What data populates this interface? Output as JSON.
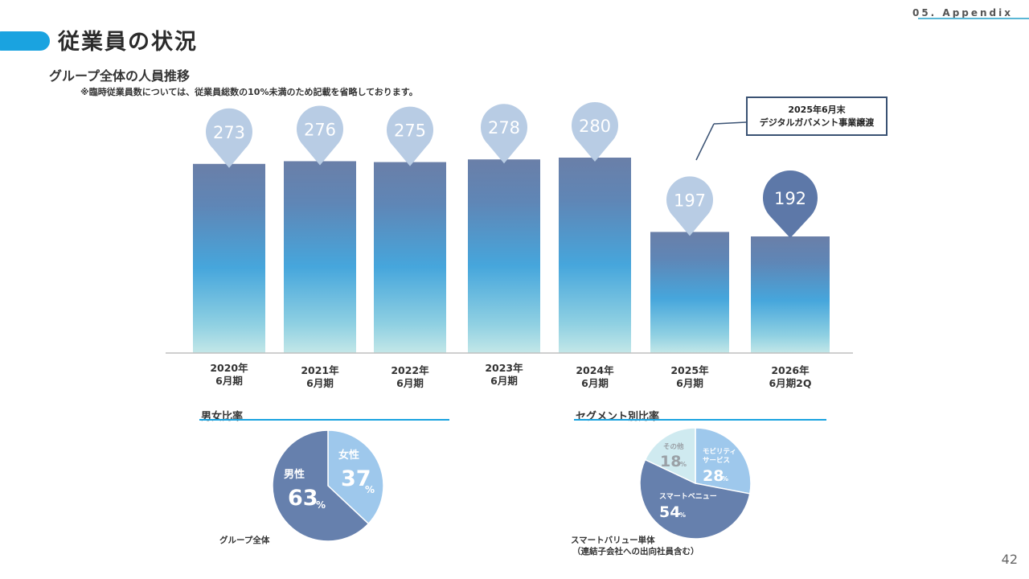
{
  "header": {
    "section": "05. Appendix",
    "title": "従業員の状況",
    "subtitle": "グループ全体の人員推移",
    "note": "※臨時従業員数については、従業員総数の10%未満のため記載を省略しております。",
    "page_number": "42"
  },
  "callout": {
    "line1": "2025年6月末",
    "line2": "デジタルガバメント事業譲渡"
  },
  "chart_data": [
    {
      "type": "bar",
      "categories": [
        "2020年\n6月期",
        "2021年\n6月期",
        "2022年\n6月期",
        "2023年\n6月期",
        "2024年\n6月期",
        "2025年\n6月期",
        "2026年\n6月期2Q"
      ],
      "values": [
        273,
        276,
        275,
        278,
        280,
        197,
        192
      ],
      "title": "",
      "xlabel": "",
      "ylabel": "",
      "grid": false,
      "colors": {
        "bar_top": "#6a7fa8",
        "bar_mid": "#46a6dc",
        "bar_bottom": "#bfe6e8",
        "pin_light": "#b8cce4",
        "pin_dark": "#5d78a8"
      }
    },
    {
      "type": "pie",
      "title": "男女比率",
      "caption": "グループ全体",
      "slices": [
        {
          "label": "女性",
          "value": 37,
          "color": "#9ec8ec"
        },
        {
          "label": "男性",
          "value": 63,
          "color": "#6680ad"
        }
      ],
      "unit": "%"
    },
    {
      "type": "pie",
      "title": "セグメント別比率",
      "caption_line1": "スマートバリュー単体",
      "caption_line2": "（連結子会社への出向社員含む）",
      "slices": [
        {
          "label": "モビリティ\nサービス",
          "value": 28,
          "color": "#9ec8ec"
        },
        {
          "label": "スマートベニュー",
          "value": 54,
          "color": "#6680ad"
        },
        {
          "label": "その他",
          "value": 18,
          "color": "#cfeaf0"
        }
      ],
      "unit": "%"
    }
  ]
}
